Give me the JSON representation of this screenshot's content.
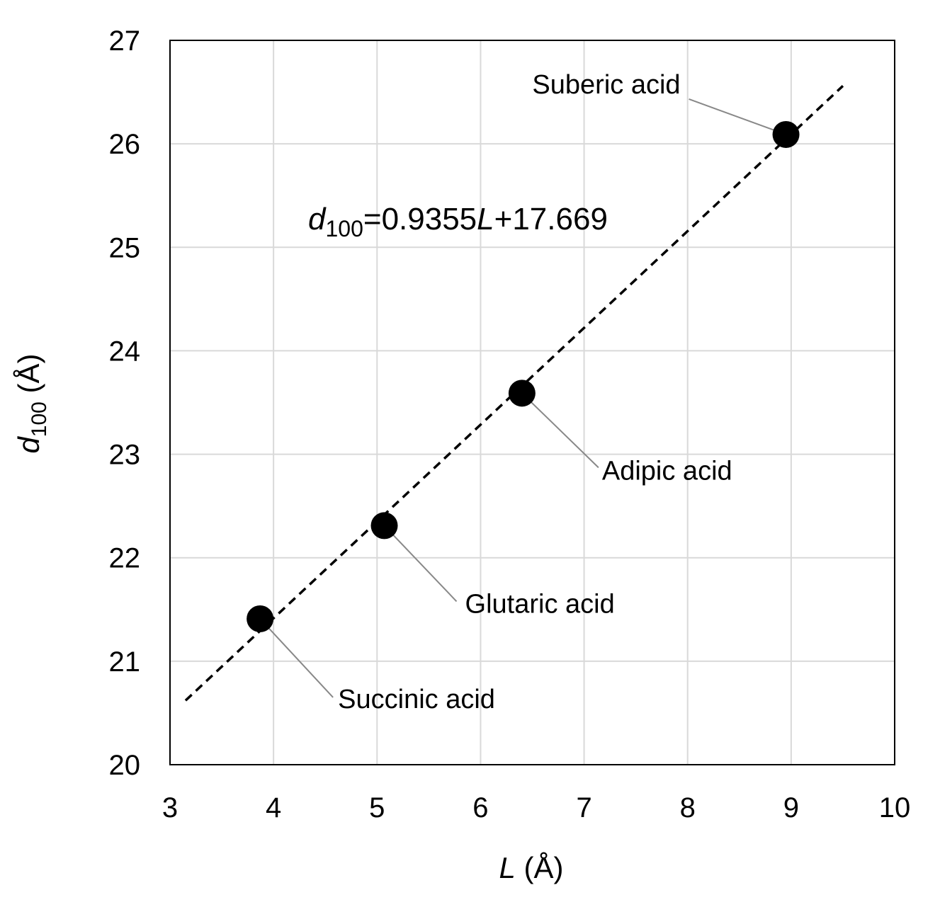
{
  "chart_data": {
    "type": "scatter",
    "x_label": {
      "var": "L",
      "unit": " (Å)"
    },
    "y_label": {
      "var": "d",
      "sub": "100",
      "unit": " (Å)"
    },
    "equation": {
      "var": "d",
      "sub": "100",
      "mid": "=0.9355",
      "var2": "L",
      "end": "+17.669"
    },
    "series": [
      {
        "color": "#000000",
        "x": [
          3.87,
          5.07,
          6.4,
          8.95
        ],
        "values": [
          21.41,
          22.31,
          23.59,
          26.09
        ],
        "labels": [
          "Succinic acid",
          "Glutaric acid",
          "Adipic acid",
          "Suberic acid"
        ]
      }
    ],
    "fit": {
      "x": [
        3.15,
        9.5
      ],
      "y": [
        20.62,
        26.56
      ],
      "color": "#000000",
      "dashed": true
    },
    "xlim": [
      3,
      10
    ],
    "ylim": [
      20,
      27
    ],
    "xticks": [
      3,
      4,
      5,
      6,
      7,
      8,
      9,
      10
    ],
    "yticks": [
      20,
      21,
      22,
      23,
      24,
      25,
      26,
      27
    ],
    "grid": true
  }
}
